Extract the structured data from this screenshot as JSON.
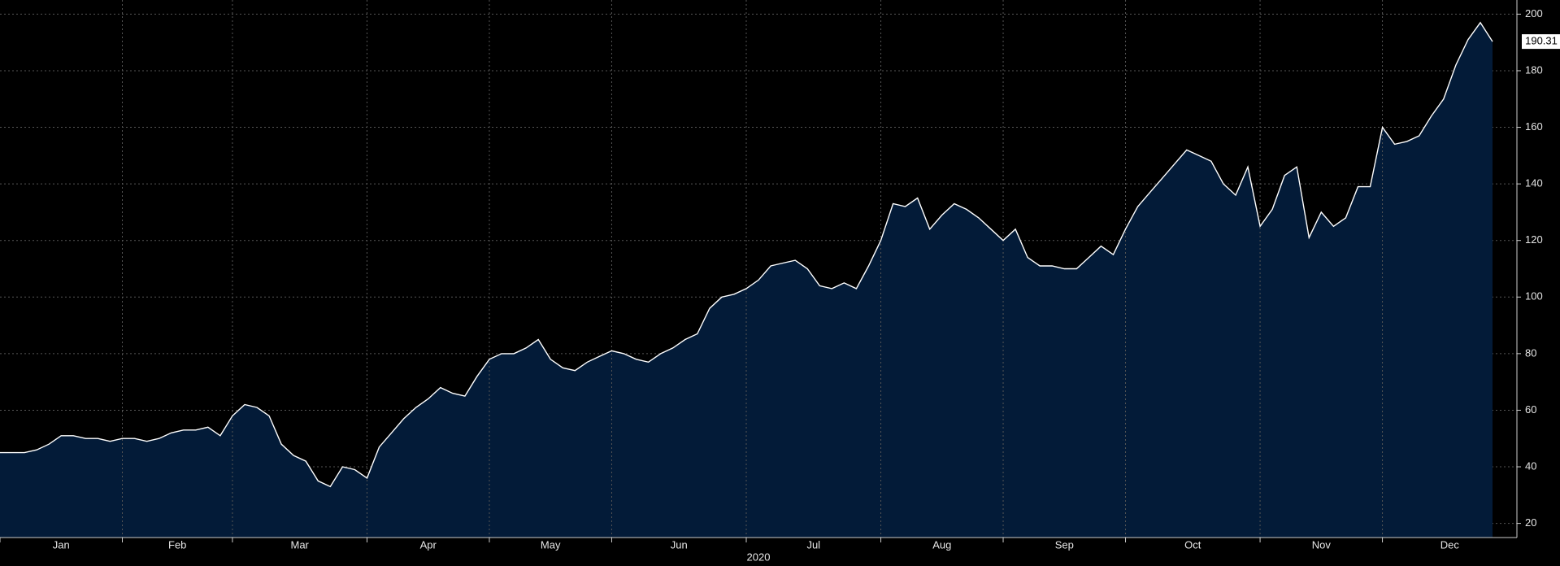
{
  "chart_data": {
    "type": "area",
    "xlabel": "2020",
    "categories": [
      "Jan",
      null,
      null,
      null,
      null,
      null,
      null,
      null,
      null,
      null,
      "Feb",
      null,
      null,
      null,
      null,
      null,
      null,
      null,
      null,
      "Mar",
      null,
      null,
      null,
      null,
      null,
      null,
      null,
      null,
      null,
      null,
      "Apr",
      null,
      null,
      null,
      null,
      null,
      null,
      null,
      null,
      null,
      "May",
      null,
      null,
      null,
      null,
      null,
      null,
      null,
      null,
      null,
      "Jun",
      null,
      null,
      null,
      null,
      null,
      null,
      null,
      null,
      null,
      null,
      "Jul",
      null,
      null,
      null,
      null,
      null,
      null,
      null,
      null,
      null,
      null,
      "Aug",
      null,
      null,
      null,
      null,
      null,
      null,
      null,
      null,
      null,
      "Sep",
      null,
      null,
      null,
      null,
      null,
      null,
      null,
      null,
      null,
      "Oct",
      null,
      null,
      null,
      null,
      null,
      null,
      null,
      null,
      null,
      null,
      "Nov",
      null,
      null,
      null,
      null,
      null,
      null,
      null,
      null,
      null,
      "Dec",
      null,
      null,
      null,
      null,
      null,
      null,
      null,
      null,
      null
    ],
    "series": [
      {
        "color": "#ffffff",
        "fill": "#031b38",
        "values": [
          45,
          45,
          45,
          46,
          48,
          51,
          51,
          50,
          50,
          49,
          50,
          50,
          49,
          50,
          52,
          53,
          53,
          54,
          51,
          58,
          62,
          61,
          58,
          48,
          44,
          42,
          35,
          33,
          40,
          39,
          36,
          47,
          52,
          57,
          61,
          64,
          68,
          66,
          65,
          72,
          78,
          80,
          80,
          82,
          85,
          78,
          75,
          74,
          77,
          79,
          81,
          80,
          78,
          77,
          80,
          82,
          85,
          87,
          96,
          100,
          101,
          103,
          106,
          111,
          112,
          113,
          110,
          104,
          103,
          105,
          103,
          111,
          120,
          133,
          132,
          135,
          124,
          129,
          133,
          131,
          128,
          124,
          120,
          124,
          114,
          111,
          111,
          110,
          110,
          114,
          118,
          115,
          124,
          132,
          137,
          142,
          147,
          152,
          150,
          148,
          140,
          136,
          146,
          125,
          131,
          143,
          146,
          121,
          130,
          125,
          128,
          139,
          139,
          160,
          154,
          155,
          157,
          164,
          170,
          182,
          191,
          197,
          190.31
        ]
      }
    ],
    "ylim": [
      15,
      205
    ],
    "yticks": [
      20,
      40,
      60,
      80,
      100,
      120,
      140,
      160,
      180,
      200
    ],
    "grid": true
  }
}
